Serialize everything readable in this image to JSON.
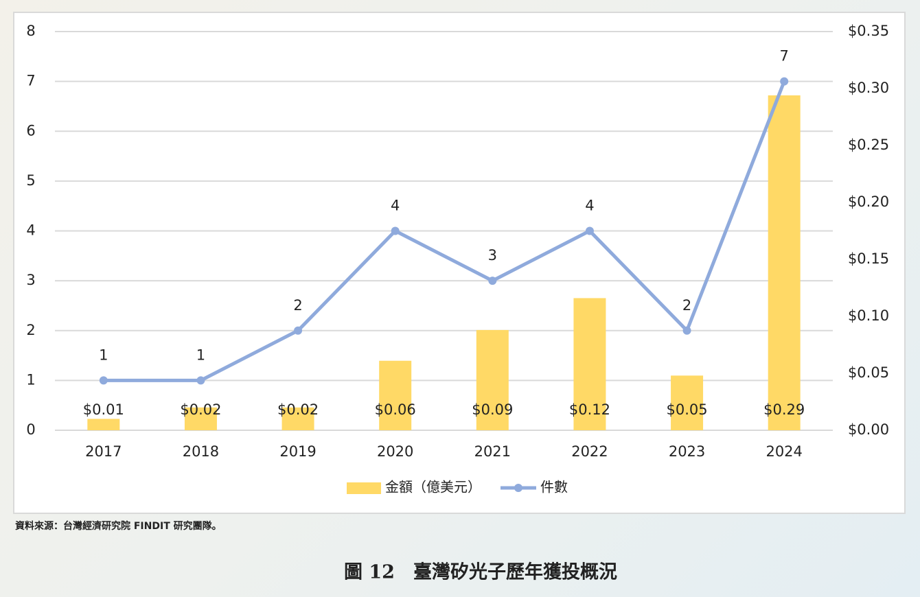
{
  "chart_data": {
    "type": "combo",
    "categories": [
      "2017",
      "2018",
      "2019",
      "2020",
      "2021",
      "2022",
      "2023",
      "2024"
    ],
    "series": [
      {
        "name": "金額（億美元）",
        "type": "bar",
        "axis": "y2",
        "color": "#ffd966",
        "values": [
          0.01,
          0.02,
          0.02,
          0.061,
          0.088,
          0.116,
          0.048,
          0.294
        ],
        "value_labels": [
          "$0.01",
          "$0.02",
          "$0.02",
          "$0.06",
          "$0.09",
          "$0.12",
          "$0.05",
          "$0.29"
        ]
      },
      {
        "name": "件數",
        "type": "line",
        "color": "#8faadc",
        "values": [
          1,
          1,
          2,
          4,
          3,
          4,
          2,
          7
        ]
      }
    ],
    "ylim": [
      0,
      8
    ],
    "yticks": [
      0,
      1,
      2,
      3,
      4,
      5,
      6,
      7,
      8
    ],
    "y2lim": [
      0,
      0.35
    ],
    "y2ticks": [
      {
        "value": 0,
        "label": "$0.00"
      },
      {
        "value": 0.05,
        "label": "$0.05"
      },
      {
        "value": 0.1,
        "label": "$0.10"
      },
      {
        "value": 0.15,
        "label": "$0.15"
      },
      {
        "value": 0.2,
        "label": "$0.20"
      },
      {
        "value": 0.25,
        "label": "$0.25"
      },
      {
        "value": 0.3,
        "label": "$0.30"
      },
      {
        "value": 0.35,
        "label": "$0.35"
      }
    ],
    "grid": true,
    "legend": "bottom",
    "source": "資料來源：台灣經濟研究院 FINDIT 研究團隊。",
    "caption": "圖 12　臺灣矽光子歷年獲投概況"
  }
}
